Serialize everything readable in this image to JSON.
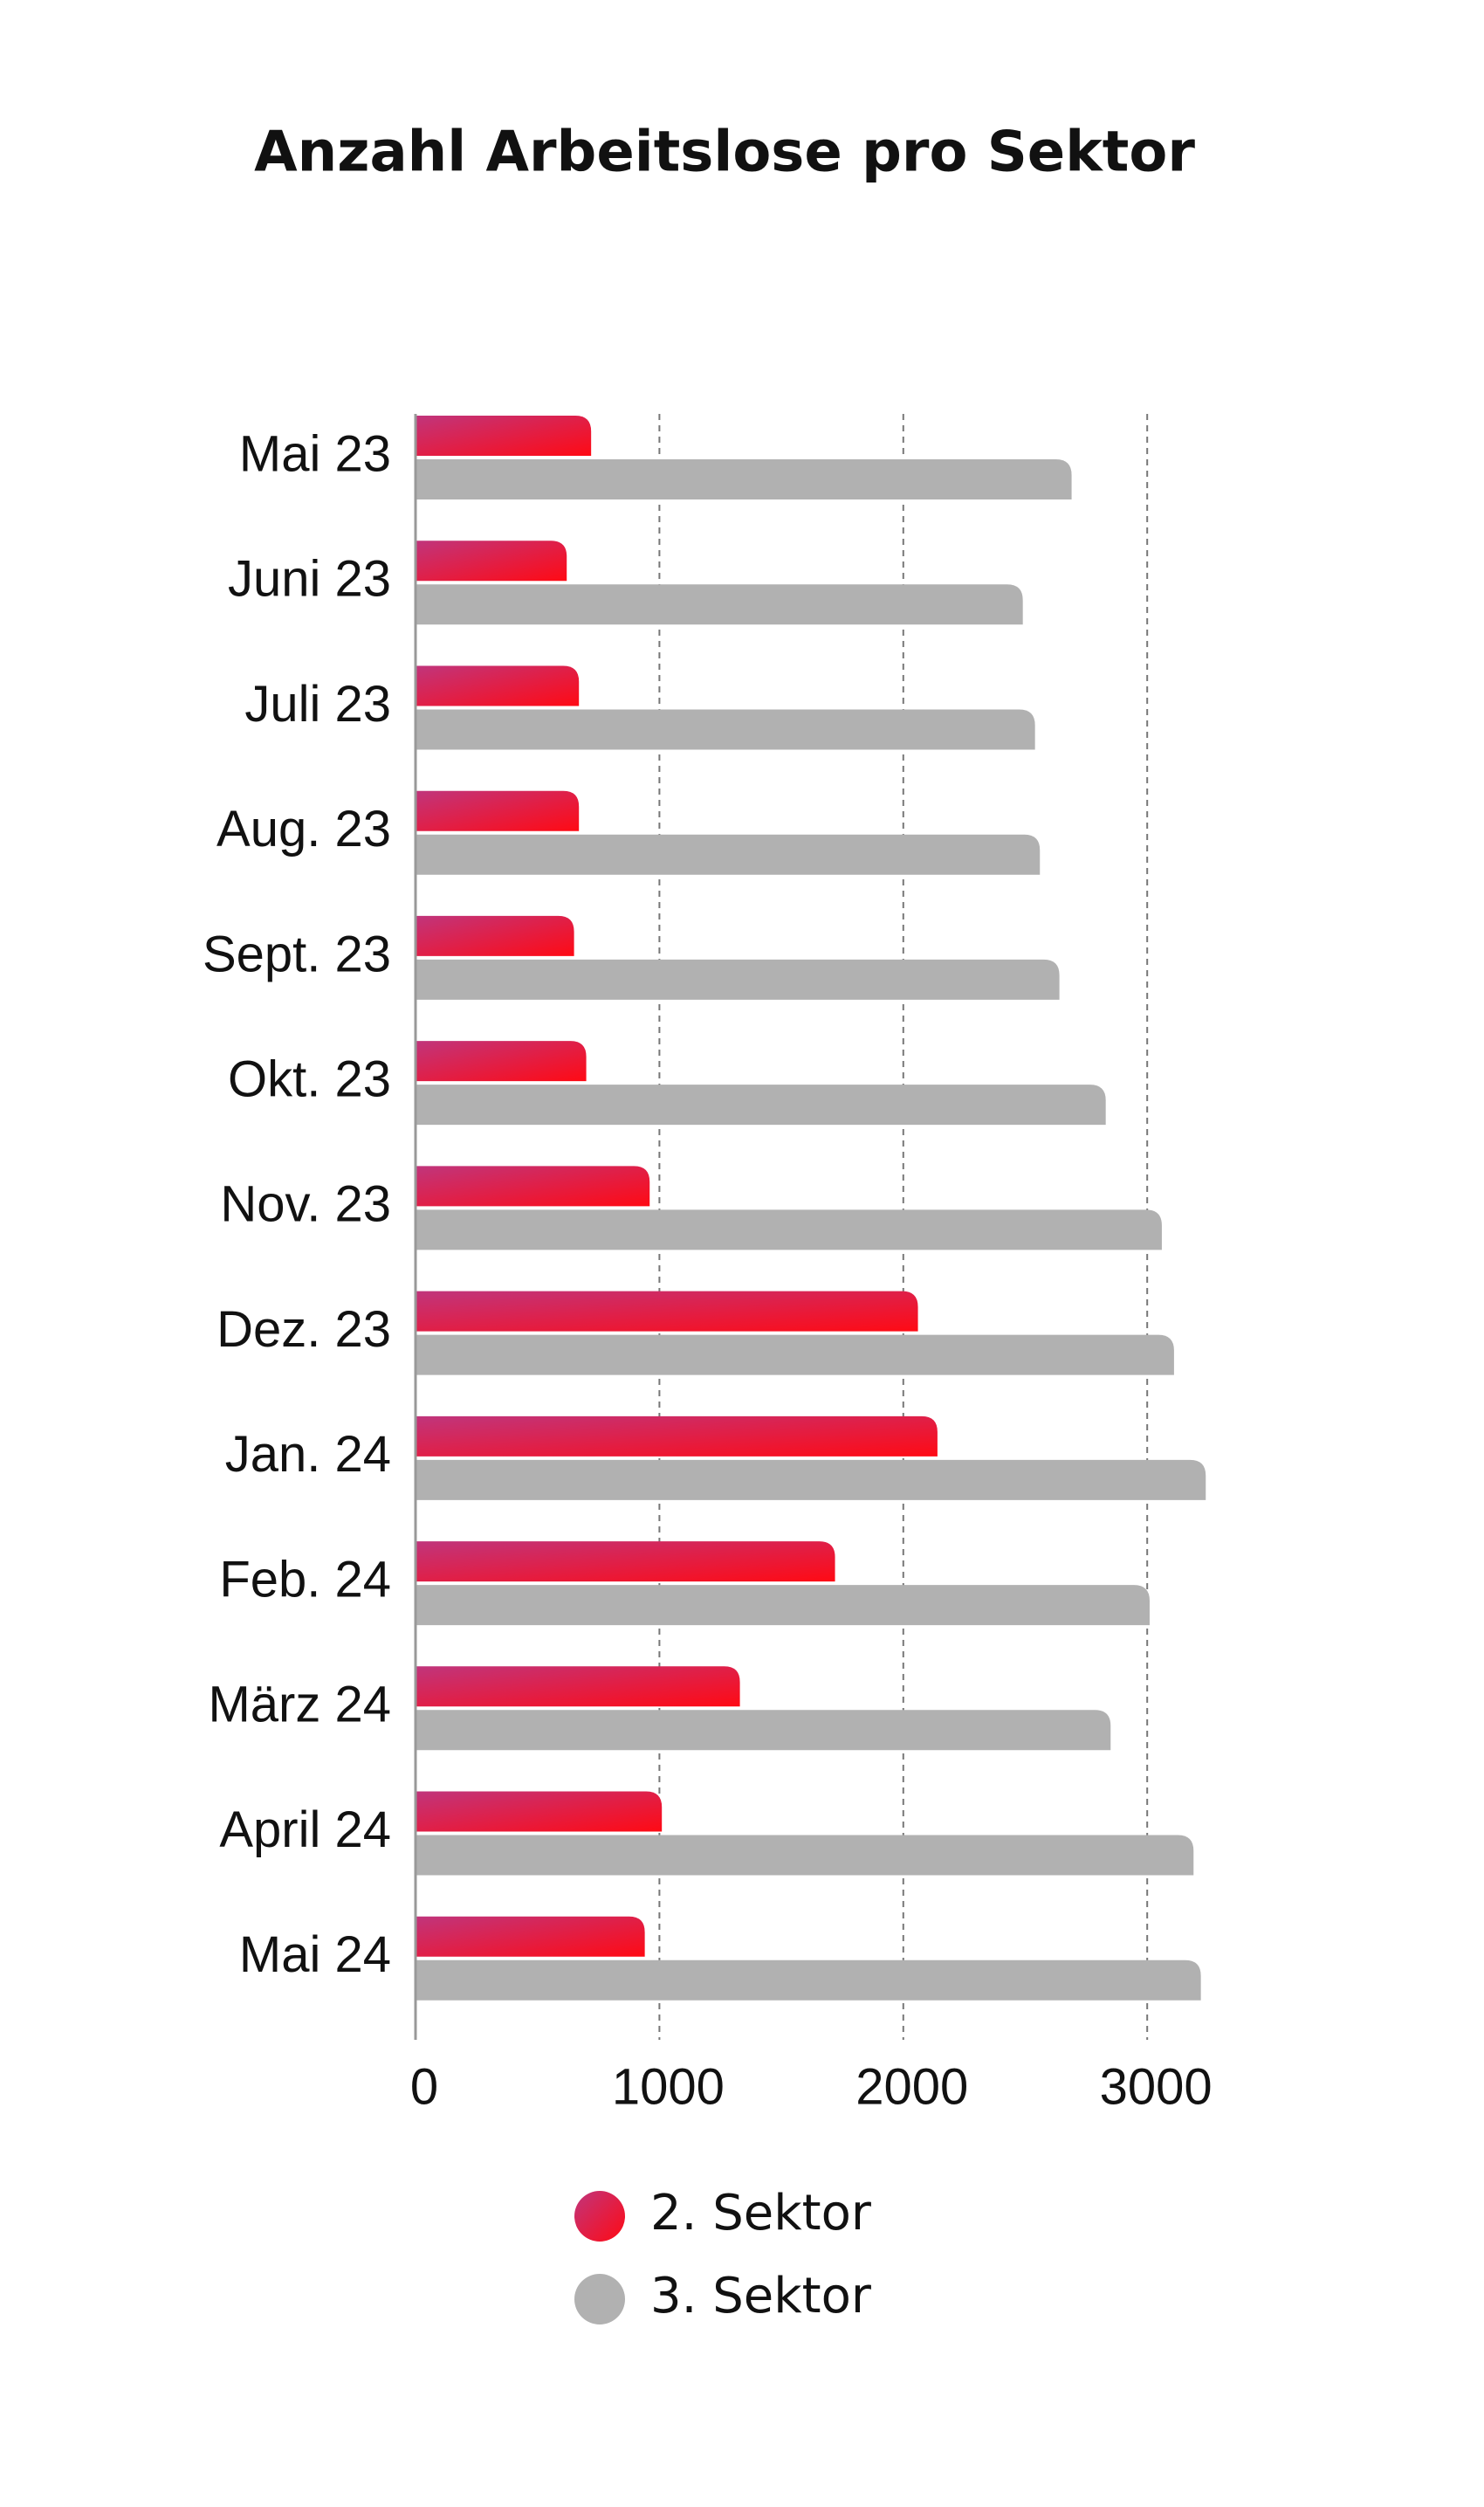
{
  "chart_data": {
    "type": "hbar",
    "title": "Anzahl Arbeitslose pro Sektor",
    "categories": [
      "Mai 23",
      "Juni 23",
      "Juli 23",
      "Aug. 23",
      "Sept. 23",
      "Okt. 23",
      "Nov. 23",
      "Dez. 23",
      "Jan. 24",
      "Feb. 24",
      "März 24",
      "April 24",
      "Mai 24"
    ],
    "series": [
      {
        "name": "2. Sektor",
        "color": "#e3173e",
        "values": [
          720,
          620,
          670,
          670,
          650,
          700,
          960,
          2060,
          2140,
          1720,
          1330,
          1010,
          940
        ]
      },
      {
        "name": "3. Sektor",
        "color": "#b1b1b1",
        "values": [
          2690,
          2490,
          2540,
          2560,
          2640,
          2830,
          3060,
          3110,
          3240,
          3010,
          2850,
          3190,
          3220
        ]
      }
    ],
    "xlim": [
      0,
      3300
    ],
    "xticks": [
      0,
      1000,
      2000,
      3000
    ],
    "grid": true
  }
}
